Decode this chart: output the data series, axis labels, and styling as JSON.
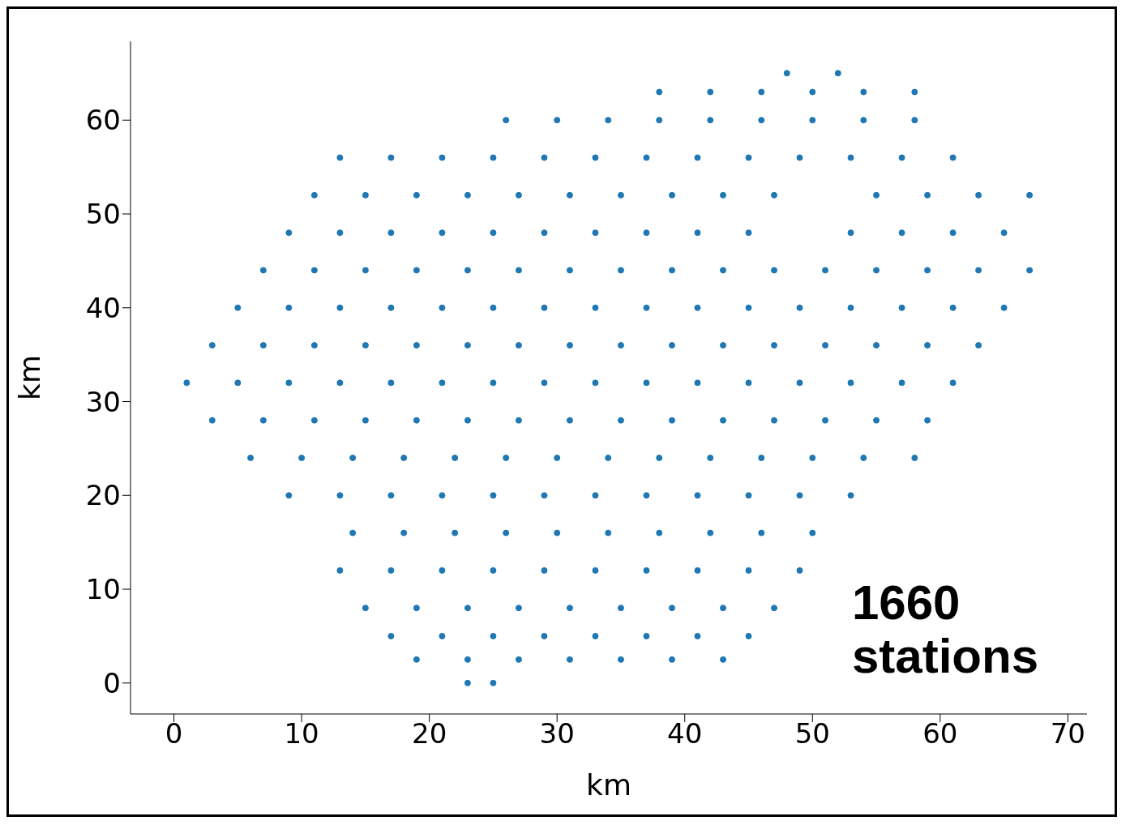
{
  "chart_data": {
    "type": "scatter",
    "xlabel": "km",
    "ylabel": "km",
    "color": "#1f77b4",
    "marker": "circle",
    "xlim": [
      -3.4,
      71.5
    ],
    "ylim": [
      -3.3,
      68.4
    ],
    "xticks": [
      0,
      10,
      20,
      30,
      40,
      50,
      60,
      70
    ],
    "yticks": [
      0,
      10,
      20,
      30,
      40,
      50,
      60
    ],
    "annotations": [
      "1660 stations"
    ],
    "x": [
      23,
      25,
      19,
      23,
      27,
      31,
      35,
      39,
      43,
      17,
      21,
      25,
      29,
      33,
      37,
      41,
      45,
      15,
      19,
      23,
      27,
      31,
      35,
      39,
      43,
      47,
      13,
      17,
      21,
      25,
      29,
      33,
      37,
      41,
      45,
      49,
      14,
      18,
      22,
      26,
      30,
      34,
      38,
      42,
      46,
      50,
      9,
      13,
      17,
      21,
      25,
      29,
      33,
      37,
      41,
      45,
      49,
      53,
      6,
      10,
      14,
      18,
      22,
      26,
      30,
      34,
      38,
      42,
      46,
      50,
      54,
      58,
      3,
      7,
      11,
      15,
      19,
      23,
      27,
      31,
      35,
      39,
      43,
      47,
      51,
      55,
      59,
      1,
      5,
      9,
      13,
      17,
      21,
      25,
      29,
      33,
      37,
      41,
      45,
      49,
      53,
      57,
      61,
      3,
      7,
      11,
      15,
      19,
      23,
      27,
      31,
      35,
      39,
      43,
      47,
      51,
      55,
      59,
      63,
      5,
      9,
      13,
      17,
      21,
      25,
      29,
      33,
      37,
      41,
      45,
      49,
      53,
      57,
      61,
      65,
      7,
      11,
      15,
      19,
      23,
      27,
      31,
      35,
      39,
      43,
      47,
      51,
      55,
      59,
      63,
      67,
      9,
      13,
      17,
      21,
      25,
      29,
      33,
      37,
      41,
      45,
      53,
      57,
      61,
      65,
      11,
      15,
      19,
      23,
      27,
      31,
      35,
      39,
      43,
      47,
      55,
      59,
      63,
      67,
      13,
      17,
      21,
      25,
      29,
      33,
      37,
      41,
      45,
      49,
      53,
      57,
      61,
      26,
      30,
      34,
      38,
      42,
      46,
      50,
      54,
      58,
      38,
      42,
      46,
      50,
      54,
      58,
      48,
      52
    ],
    "values": [
      0,
      0,
      2.5,
      2.5,
      2.5,
      2.5,
      2.5,
      2.5,
      2.5,
      5,
      5,
      5,
      5,
      5,
      5,
      5,
      5,
      8,
      8,
      8,
      8,
      8,
      8,
      8,
      8,
      8,
      12,
      12,
      12,
      12,
      12,
      12,
      12,
      12,
      12,
      12,
      16,
      16,
      16,
      16,
      16,
      16,
      16,
      16,
      16,
      16,
      20,
      20,
      20,
      20,
      20,
      20,
      20,
      20,
      20,
      20,
      20,
      20,
      24,
      24,
      24,
      24,
      24,
      24,
      24,
      24,
      24,
      24,
      24,
      24,
      24,
      24,
      28,
      28,
      28,
      28,
      28,
      28,
      28,
      28,
      28,
      28,
      28,
      28,
      28,
      28,
      28,
      32,
      32,
      32,
      32,
      32,
      32,
      32,
      32,
      32,
      32,
      32,
      32,
      32,
      32,
      32,
      32,
      36,
      36,
      36,
      36,
      36,
      36,
      36,
      36,
      36,
      36,
      36,
      36,
      36,
      36,
      36,
      36,
      40,
      40,
      40,
      40,
      40,
      40,
      40,
      40,
      40,
      40,
      40,
      40,
      40,
      40,
      40,
      40,
      44,
      44,
      44,
      44,
      44,
      44,
      44,
      44,
      44,
      44,
      44,
      44,
      44,
      44,
      44,
      44,
      48,
      48,
      48,
      48,
      48,
      48,
      48,
      48,
      48,
      48,
      48,
      48,
      48,
      48,
      52,
      52,
      52,
      52,
      52,
      52,
      52,
      52,
      52,
      52,
      52,
      52,
      52,
      52,
      56,
      56,
      56,
      56,
      56,
      56,
      56,
      56,
      56,
      56,
      56,
      56,
      56,
      60,
      60,
      60,
      60,
      60,
      60,
      60,
      60,
      60,
      63,
      63,
      63,
      63,
      63,
      63,
      65,
      65
    ]
  }
}
